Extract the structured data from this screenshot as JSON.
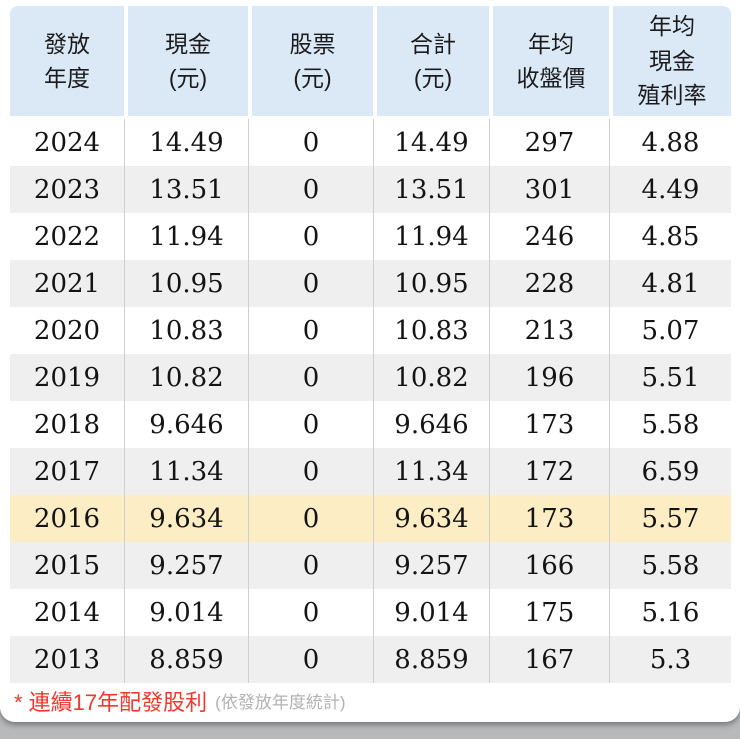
{
  "table": {
    "headers": [
      {
        "label": "發放\n年度"
      },
      {
        "label": "現金\n(元)"
      },
      {
        "label": "股票\n(元)"
      },
      {
        "label": "合計\n(元)"
      },
      {
        "label": "年均\n收盤價"
      },
      {
        "label": "年均\n現金\n殖利率"
      }
    ],
    "column_keys": [
      "year",
      "cash",
      "stock",
      "total",
      "avg_close",
      "cash_yield"
    ],
    "rows": [
      {
        "year": "2024",
        "cash": "14.49",
        "stock": "0",
        "total": "14.49",
        "avg_close": "297",
        "cash_yield": "4.88",
        "highlight": false
      },
      {
        "year": "2023",
        "cash": "13.51",
        "stock": "0",
        "total": "13.51",
        "avg_close": "301",
        "cash_yield": "4.49",
        "highlight": false
      },
      {
        "year": "2022",
        "cash": "11.94",
        "stock": "0",
        "total": "11.94",
        "avg_close": "246",
        "cash_yield": "4.85",
        "highlight": false
      },
      {
        "year": "2021",
        "cash": "10.95",
        "stock": "0",
        "total": "10.95",
        "avg_close": "228",
        "cash_yield": "4.81",
        "highlight": false
      },
      {
        "year": "2020",
        "cash": "10.83",
        "stock": "0",
        "total": "10.83",
        "avg_close": "213",
        "cash_yield": "5.07",
        "highlight": false
      },
      {
        "year": "2019",
        "cash": "10.82",
        "stock": "0",
        "total": "10.82",
        "avg_close": "196",
        "cash_yield": "5.51",
        "highlight": false
      },
      {
        "year": "2018",
        "cash": "9.646",
        "stock": "0",
        "total": "9.646",
        "avg_close": "173",
        "cash_yield": "5.58",
        "highlight": false
      },
      {
        "year": "2017",
        "cash": "11.34",
        "stock": "0",
        "total": "11.34",
        "avg_close": "172",
        "cash_yield": "6.59",
        "highlight": false
      },
      {
        "year": "2016",
        "cash": "9.634",
        "stock": "0",
        "total": "9.634",
        "avg_close": "173",
        "cash_yield": "5.57",
        "highlight": true
      },
      {
        "year": "2015",
        "cash": "9.257",
        "stock": "0",
        "total": "9.257",
        "avg_close": "166",
        "cash_yield": "5.58",
        "highlight": false
      },
      {
        "year": "2014",
        "cash": "9.014",
        "stock": "0",
        "total": "9.014",
        "avg_close": "175",
        "cash_yield": "5.16",
        "highlight": false
      },
      {
        "year": "2013",
        "cash": "8.859",
        "stock": "0",
        "total": "8.859",
        "avg_close": "167",
        "cash_yield": "5.3",
        "highlight": false
      }
    ]
  },
  "footer": {
    "note": "* 連續17年配發股利",
    "note_sub": "(依發放年度統計)"
  },
  "colors": {
    "header_bg": "#dbe9f6",
    "row_alt_bg": "#efefef",
    "highlight_bg": "#fdedc5",
    "note_red": "#f0382d",
    "note_gray": "#b2b2b2"
  }
}
